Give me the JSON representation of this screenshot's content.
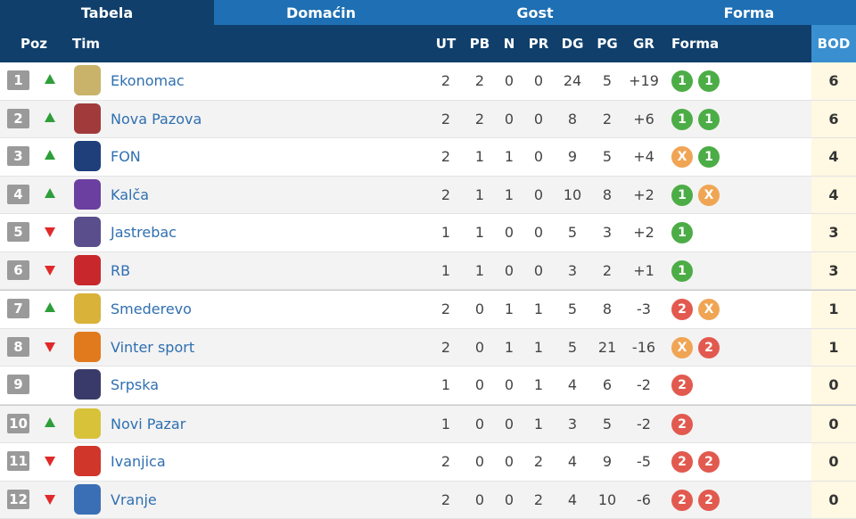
{
  "tabs": [
    {
      "label": "Tabela",
      "active": true
    },
    {
      "label": "Domaćin",
      "active": false
    },
    {
      "label": "Gost",
      "active": false
    },
    {
      "label": "Forma",
      "active": false
    }
  ],
  "header": {
    "poz": "Poz",
    "tim": "Tim",
    "ut": "UT",
    "pb": "PB",
    "n": "N",
    "pr": "PR",
    "dg": "DG",
    "pg": "PG",
    "gr": "GR",
    "forma": "Forma",
    "bod": "BOD"
  },
  "colors": {
    "win": "#4cad46",
    "draw": "#f0a554",
    "loss": "#e25a4f",
    "up": "#2e9e3a",
    "down": "#e02a2a"
  },
  "rows": [
    {
      "pos": "1",
      "trend": "up",
      "team": "Ekonomac",
      "ut": "2",
      "pb": "2",
      "n": "0",
      "pr": "0",
      "dg": "24",
      "pg": "5",
      "gr": "+19",
      "form": [
        "1",
        "1"
      ],
      "bod": "6",
      "logo_color": "#c9b36a"
    },
    {
      "pos": "2",
      "trend": "up",
      "team": "Nova Pazova",
      "ut": "2",
      "pb": "2",
      "n": "0",
      "pr": "0",
      "dg": "8",
      "pg": "2",
      "gr": "+6",
      "form": [
        "1",
        "1"
      ],
      "bod": "6",
      "logo_color": "#a13a3a"
    },
    {
      "pos": "3",
      "trend": "up",
      "team": "FON",
      "ut": "2",
      "pb": "1",
      "n": "1",
      "pr": "0",
      "dg": "9",
      "pg": "5",
      "gr": "+4",
      "form": [
        "X",
        "1"
      ],
      "bod": "4",
      "logo_color": "#1f3f7a"
    },
    {
      "pos": "4",
      "trend": "up",
      "team": "Kalča",
      "ut": "2",
      "pb": "1",
      "n": "1",
      "pr": "0",
      "dg": "10",
      "pg": "8",
      "gr": "+2",
      "form": [
        "1",
        "X"
      ],
      "bod": "4",
      "logo_color": "#6b3fa0"
    },
    {
      "pos": "5",
      "trend": "down",
      "team": "Jastrebac",
      "ut": "1",
      "pb": "1",
      "n": "0",
      "pr": "0",
      "dg": "5",
      "pg": "3",
      "gr": "+2",
      "form": [
        "1"
      ],
      "bod": "3",
      "logo_color": "#5a4f8c"
    },
    {
      "pos": "6",
      "trend": "down",
      "team": "RB",
      "ut": "1",
      "pb": "1",
      "n": "0",
      "pr": "0",
      "dg": "3",
      "pg": "2",
      "gr": "+1",
      "form": [
        "1"
      ],
      "bod": "3",
      "logo_color": "#c8282c"
    },
    {
      "pos": "7",
      "trend": "up",
      "team": "Smederevo",
      "ut": "2",
      "pb": "0",
      "n": "1",
      "pr": "1",
      "dg": "5",
      "pg": "8",
      "gr": "-3",
      "form": [
        "2",
        "X"
      ],
      "bod": "1",
      "logo_color": "#d9b23a"
    },
    {
      "pos": "8",
      "trend": "down",
      "team": "Vinter sport",
      "ut": "2",
      "pb": "0",
      "n": "1",
      "pr": "1",
      "dg": "5",
      "pg": "21",
      "gr": "-16",
      "form": [
        "X",
        "2"
      ],
      "bod": "1",
      "logo_color": "#e07a1c"
    },
    {
      "pos": "9",
      "trend": "none",
      "team": "Srpska",
      "ut": "1",
      "pb": "0",
      "n": "0",
      "pr": "1",
      "dg": "4",
      "pg": "6",
      "gr": "-2",
      "form": [
        "2"
      ],
      "bod": "0",
      "logo_color": "#3a3a6a"
    },
    {
      "pos": "10",
      "trend": "up",
      "team": "Novi Pazar",
      "ut": "1",
      "pb": "0",
      "n": "0",
      "pr": "1",
      "dg": "3",
      "pg": "5",
      "gr": "-2",
      "form": [
        "2"
      ],
      "bod": "0",
      "logo_color": "#d8c23a"
    },
    {
      "pos": "11",
      "trend": "down",
      "team": "Ivanjica",
      "ut": "2",
      "pb": "0",
      "n": "0",
      "pr": "2",
      "dg": "4",
      "pg": "9",
      "gr": "-5",
      "form": [
        "2",
        "2"
      ],
      "bod": "0",
      "logo_color": "#d0362a"
    },
    {
      "pos": "12",
      "trend": "down",
      "team": "Vranje",
      "ut": "2",
      "pb": "0",
      "n": "0",
      "pr": "2",
      "dg": "4",
      "pg": "10",
      "gr": "-6",
      "form": [
        "2",
        "2"
      ],
      "bod": "0",
      "logo_color": "#3a6fb5"
    }
  ]
}
